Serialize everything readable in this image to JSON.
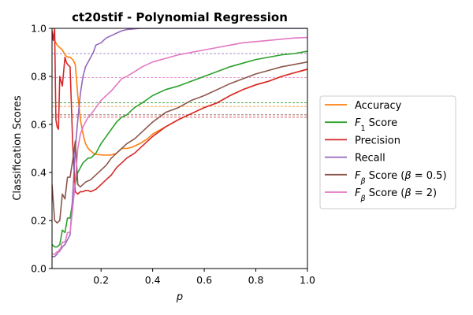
{
  "chart_data": {
    "type": "line",
    "title": "ct20stif - Polynomial Regression",
    "xlabel": "p",
    "ylabel": "Classification Scores",
    "xlim": [
      0.01,
      1.0
    ],
    "ylim": [
      0.0,
      1.0
    ],
    "x_ticks": [
      "0.2",
      "0.4",
      "0.6",
      "0.8",
      "1.0"
    ],
    "x_tick_values": [
      0.2,
      0.4,
      0.6,
      0.8,
      1.0
    ],
    "y_ticks": [
      "0.0",
      "0.2",
      "0.4",
      "0.6",
      "0.8",
      "1.0"
    ],
    "y_tick_values": [
      0.0,
      0.2,
      0.4,
      0.6,
      0.8,
      1.0
    ],
    "grid": false,
    "legend_placement": "right-outside",
    "series": [
      {
        "name": "Accuracy",
        "label_parts": [
          [
            "Accuracy",
            ""
          ]
        ],
        "color": "#ff7f0e",
        "x": [
          0.01,
          0.02,
          0.03,
          0.04,
          0.05,
          0.06,
          0.07,
          0.08,
          0.09,
          0.1,
          0.11,
          0.12,
          0.13,
          0.14,
          0.15,
          0.16,
          0.17,
          0.18,
          0.2,
          0.22,
          0.24,
          0.26,
          0.28,
          0.3,
          0.32,
          0.35,
          0.38,
          0.4,
          0.45,
          0.5,
          0.55,
          0.6,
          0.65,
          0.7,
          0.75,
          0.8,
          0.85,
          0.9,
          0.95,
          1.0
        ],
        "y": [
          0.98,
          0.95,
          0.93,
          0.92,
          0.91,
          0.89,
          0.88,
          0.88,
          0.87,
          0.85,
          0.72,
          0.62,
          0.56,
          0.52,
          0.5,
          0.49,
          0.48,
          0.475,
          0.473,
          0.472,
          0.473,
          0.48,
          0.5,
          0.5,
          0.505,
          0.52,
          0.54,
          0.56,
          0.59,
          0.62,
          0.645,
          0.67,
          0.69,
          0.72,
          0.745,
          0.765,
          0.78,
          0.8,
          0.815,
          0.83
        ],
        "ref_line": 0.675
      },
      {
        "name": "F1 Score",
        "label_parts": [
          [
            "F",
            ""
          ],
          [
            "1",
            "sub"
          ],
          [
            " Score",
            ""
          ]
        ],
        "color": "#2ca02c",
        "x": [
          0.01,
          0.02,
          0.03,
          0.04,
          0.05,
          0.06,
          0.07,
          0.08,
          0.09,
          0.1,
          0.11,
          0.12,
          0.13,
          0.14,
          0.15,
          0.16,
          0.18,
          0.2,
          0.22,
          0.24,
          0.26,
          0.28,
          0.3,
          0.33,
          0.36,
          0.4,
          0.45,
          0.5,
          0.55,
          0.6,
          0.65,
          0.7,
          0.75,
          0.8,
          0.85,
          0.9,
          0.95,
          1.0
        ],
        "y": [
          0.1,
          0.09,
          0.09,
          0.1,
          0.16,
          0.15,
          0.21,
          0.21,
          0.28,
          0.35,
          0.4,
          0.42,
          0.44,
          0.45,
          0.46,
          0.46,
          0.48,
          0.52,
          0.55,
          0.58,
          0.61,
          0.63,
          0.64,
          0.67,
          0.69,
          0.72,
          0.745,
          0.76,
          0.78,
          0.8,
          0.82,
          0.84,
          0.855,
          0.87,
          0.88,
          0.89,
          0.895,
          0.905
        ],
        "ref_line": 0.69
      },
      {
        "name": "Precision",
        "label_parts": [
          [
            "Precision",
            ""
          ]
        ],
        "color": "#d62728",
        "x": [
          0.01,
          0.015,
          0.02,
          0.025,
          0.03,
          0.035,
          0.04,
          0.05,
          0.06,
          0.065,
          0.07,
          0.08,
          0.09,
          0.1,
          0.11,
          0.12,
          0.13,
          0.14,
          0.15,
          0.16,
          0.18,
          0.2,
          0.22,
          0.24,
          0.26,
          0.28,
          0.3,
          0.33,
          0.36,
          0.4,
          0.45,
          0.5,
          0.55,
          0.6,
          0.65,
          0.7,
          0.75,
          0.8,
          0.85,
          0.9,
          0.95,
          1.0
        ],
        "y": [
          0.99,
          0.95,
          1.0,
          0.62,
          0.59,
          0.58,
          0.8,
          0.76,
          0.88,
          0.86,
          0.85,
          0.84,
          0.52,
          0.32,
          0.31,
          0.32,
          0.32,
          0.325,
          0.325,
          0.32,
          0.33,
          0.35,
          0.37,
          0.39,
          0.42,
          0.44,
          0.46,
          0.48,
          0.51,
          0.55,
          0.59,
          0.62,
          0.645,
          0.67,
          0.69,
          0.72,
          0.745,
          0.765,
          0.78,
          0.8,
          0.815,
          0.83
        ],
        "ref_line": 0.63
      },
      {
        "name": "Recall",
        "label_parts": [
          [
            "Recall",
            ""
          ]
        ],
        "color": "#9467bd",
        "x": [
          0.01,
          0.015,
          0.02,
          0.03,
          0.04,
          0.045,
          0.05,
          0.06,
          0.07,
          0.08,
          0.09,
          0.1,
          0.11,
          0.12,
          0.13,
          0.14,
          0.15,
          0.16,
          0.17,
          0.18,
          0.2,
          0.22,
          0.24,
          0.26,
          0.28,
          0.3,
          0.32,
          0.34,
          0.36,
          1.0
        ],
        "y": [
          0.05,
          0.05,
          0.05,
          0.06,
          0.08,
          0.08,
          0.09,
          0.1,
          0.12,
          0.14,
          0.3,
          0.5,
          0.62,
          0.73,
          0.8,
          0.84,
          0.86,
          0.88,
          0.9,
          0.93,
          0.94,
          0.96,
          0.97,
          0.98,
          0.99,
          0.995,
          0.997,
          0.999,
          1.0,
          1.0
        ],
        "ref_line": 0.895
      },
      {
        "name": "Fβ Score (β=0.5)",
        "label_parts": [
          [
            "F",
            ""
          ],
          [
            "β",
            "sub"
          ],
          [
            " Score (",
            ""
          ],
          [
            "β",
            ""
          ],
          [
            " = 0.5)",
            ""
          ]
        ],
        "color": "#8c564b",
        "x": [
          0.01,
          0.02,
          0.03,
          0.04,
          0.05,
          0.06,
          0.07,
          0.08,
          0.09,
          0.1,
          0.11,
          0.12,
          0.13,
          0.14,
          0.16,
          0.18,
          0.2,
          0.22,
          0.24,
          0.26,
          0.28,
          0.3,
          0.33,
          0.36,
          0.4,
          0.45,
          0.5,
          0.55,
          0.6,
          0.65,
          0.7,
          0.75,
          0.8,
          0.85,
          0.9,
          0.95,
          1.0
        ],
        "y": [
          0.35,
          0.2,
          0.19,
          0.2,
          0.31,
          0.29,
          0.38,
          0.38,
          0.45,
          0.53,
          0.35,
          0.34,
          0.35,
          0.36,
          0.37,
          0.39,
          0.41,
          0.43,
          0.46,
          0.48,
          0.5,
          0.52,
          0.54,
          0.57,
          0.61,
          0.65,
          0.67,
          0.7,
          0.72,
          0.745,
          0.77,
          0.79,
          0.81,
          0.825,
          0.84,
          0.85,
          0.86
        ],
        "ref_line": 0.64
      },
      {
        "name": "Fβ Score (β=2)",
        "label_parts": [
          [
            "F",
            ""
          ],
          [
            "β",
            "sub"
          ],
          [
            " Score (",
            ""
          ],
          [
            "β",
            ""
          ],
          [
            " = 2)",
            ""
          ]
        ],
        "color": "#e377c2",
        "x": [
          0.01,
          0.02,
          0.03,
          0.04,
          0.05,
          0.06,
          0.07,
          0.08,
          0.09,
          0.1,
          0.11,
          0.12,
          0.13,
          0.14,
          0.15,
          0.16,
          0.18,
          0.2,
          0.22,
          0.24,
          0.26,
          0.28,
          0.3,
          0.33,
          0.36,
          0.4,
          0.45,
          0.5,
          0.55,
          0.6,
          0.65,
          0.7,
          0.75,
          0.8,
          0.85,
          0.9,
          0.95,
          1.0
        ],
        "y": [
          0.06,
          0.06,
          0.07,
          0.07,
          0.11,
          0.11,
          0.15,
          0.15,
          0.25,
          0.36,
          0.5,
          0.56,
          0.59,
          0.61,
          0.63,
          0.64,
          0.67,
          0.7,
          0.72,
          0.74,
          0.765,
          0.79,
          0.8,
          0.82,
          0.84,
          0.86,
          0.875,
          0.89,
          0.9,
          0.91,
          0.92,
          0.93,
          0.94,
          0.945,
          0.95,
          0.955,
          0.96,
          0.962
        ],
        "ref_line": 0.795
      }
    ]
  }
}
